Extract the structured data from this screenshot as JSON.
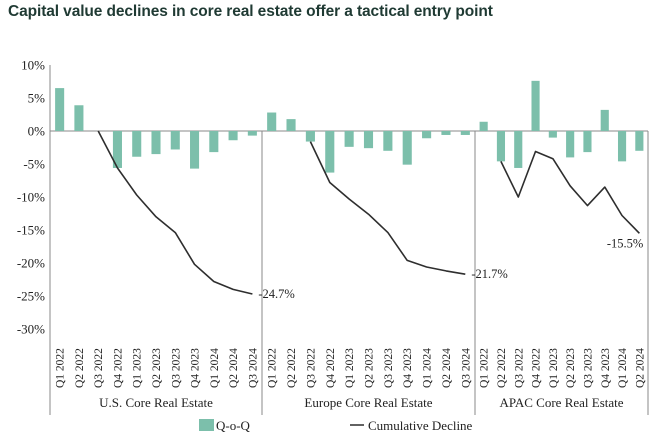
{
  "chart_data": {
    "type": "bar+line",
    "title": "Capital value declines in core real estate offer a tactical entry point",
    "ylim": [
      -30,
      10
    ],
    "yticks": [
      "10%",
      "5%",
      "0%",
      "-5%",
      "-10%",
      "-15%",
      "-20%",
      "-25%",
      "-30%"
    ],
    "ytick_values": [
      10,
      5,
      0,
      -5,
      -10,
      -15,
      -20,
      -25,
      -30
    ],
    "grid": false,
    "legend_position": "bottom",
    "groups": [
      {
        "name": "U.S. Core Real Estate",
        "categories": [
          "Q1 2022",
          "Q2 2022",
          "Q3 2022",
          "Q4 2022",
          "Q1 2023",
          "Q2 2023",
          "Q3 2023",
          "Q4 2023",
          "Q1 2024",
          "Q2 2024",
          "Q3 2024"
        ],
        "qoq": [
          6.5,
          3.9,
          0.0,
          -5.6,
          -3.9,
          -3.5,
          -2.8,
          -5.7,
          -3.2,
          -1.4,
          -0.7
        ],
        "cumulative": [
          null,
          null,
          0.0,
          -5.6,
          -9.7,
          -13.0,
          -15.4,
          -20.2,
          -22.8,
          -24.0,
          -24.7
        ],
        "end_label": "-24.7%"
      },
      {
        "name": "Europe Core Real Estate",
        "categories": [
          "Q1 2022",
          "Q2 2022",
          "Q3 2022",
          "Q4 2022",
          "Q1 2023",
          "Q2 2023",
          "Q3 2023",
          "Q4 2023",
          "Q1 2024",
          "Q2 2024",
          "Q3 2024"
        ],
        "qoq": [
          2.8,
          1.8,
          -1.6,
          -6.3,
          -2.4,
          -2.6,
          -3.0,
          -5.1,
          -1.1,
          -0.6,
          -0.6
        ],
        "cumulative": [
          null,
          null,
          -1.6,
          -7.8,
          -10.3,
          -12.6,
          -15.4,
          -19.6,
          -20.6,
          -21.2,
          -21.7
        ],
        "end_label": "-21.7%"
      },
      {
        "name": "APAC Core Real Estate",
        "categories": [
          "Q1 2022",
          "Q2 2022",
          "Q3 2022",
          "Q4 2022",
          "Q1 2023",
          "Q2 2023",
          "Q3 2023",
          "Q4 2023",
          "Q1 2024",
          "Q2 2024"
        ],
        "qoq": [
          1.4,
          -4.6,
          -5.6,
          7.6,
          -1.0,
          -4.0,
          -3.2,
          3.2,
          -4.6,
          -3.0
        ],
        "cumulative": [
          null,
          -4.6,
          -10.0,
          -3.1,
          -4.2,
          -8.3,
          -11.3,
          -8.5,
          -12.8,
          -15.5
        ],
        "end_label": "-15.5%"
      }
    ],
    "legend": [
      {
        "name": "Q-o-Q",
        "type": "bar",
        "color": "#7cbfab"
      },
      {
        "name": "Cumulative Decline",
        "type": "line",
        "color": "#2e2e2e"
      }
    ],
    "colors": {
      "bar": "#7cbfab",
      "line": "#2e2e2e",
      "axis": "#888888"
    }
  }
}
